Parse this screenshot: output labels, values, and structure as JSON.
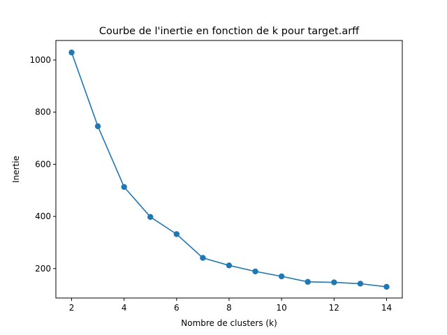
{
  "chart_data": {
    "type": "line",
    "title": "Courbe de l'inertie en fonction de k pour target.arff",
    "xlabel": "Nombre de clusters (k)",
    "ylabel": "Inertie",
    "xlim": [
      1.4,
      14.6
    ],
    "ylim": [
      87,
      1075
    ],
    "xticks": [
      2,
      4,
      6,
      8,
      10,
      12,
      14
    ],
    "yticks": [
      200,
      400,
      600,
      800,
      1000
    ],
    "grid": false,
    "legend": "none",
    "color": "#1f77b4",
    "marker": "circle",
    "x": [
      2,
      3,
      4,
      5,
      6,
      7,
      8,
      9,
      10,
      11,
      12,
      13,
      14
    ],
    "y": [
      1029,
      746,
      513,
      398,
      332,
      241,
      212,
      189,
      170,
      149,
      147,
      142,
      130
    ]
  }
}
